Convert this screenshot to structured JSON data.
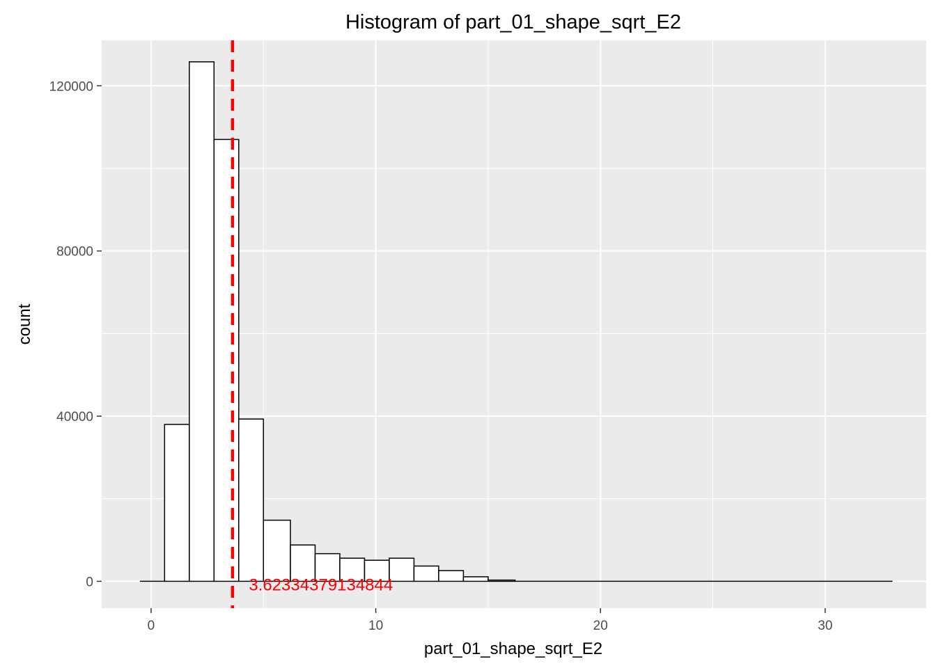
{
  "chart_data": {
    "type": "bar",
    "title": "Histogram of  part_01_shape_sqrt_E2",
    "xlabel": "part_01_shape_sqrt_E2",
    "ylabel": "count",
    "xlim": [
      -2.2,
      34.5
    ],
    "ylim": [
      -6500,
      131000
    ],
    "x_ticks": [
      0,
      10,
      20,
      30
    ],
    "y_ticks": [
      0,
      40000,
      80000,
      120000
    ],
    "x_tick_labels": [
      "0",
      "10",
      "20",
      "30"
    ],
    "y_tick_labels": [
      "0",
      "40000",
      "80000",
      "120000"
    ],
    "bin_width": 1.12,
    "bins": [
      {
        "x0": -0.5,
        "x1": 0.6,
        "count": 0
      },
      {
        "x0": 0.6,
        "x1": 1.7,
        "count": 38000
      },
      {
        "x0": 1.7,
        "x1": 2.8,
        "count": 125800
      },
      {
        "x0": 2.8,
        "x1": 3.9,
        "count": 107000
      },
      {
        "x0": 3.9,
        "x1": 5.0,
        "count": 39300
      },
      {
        "x0": 5.0,
        "x1": 6.2,
        "count": 14800
      },
      {
        "x0": 6.2,
        "x1": 7.3,
        "count": 8800
      },
      {
        "x0": 7.3,
        "x1": 8.4,
        "count": 6700
      },
      {
        "x0": 8.4,
        "x1": 9.5,
        "count": 5600
      },
      {
        "x0": 9.5,
        "x1": 10.6,
        "count": 5100
      },
      {
        "x0": 10.6,
        "x1": 11.7,
        "count": 5600
      },
      {
        "x0": 11.7,
        "x1": 12.8,
        "count": 3700
      },
      {
        "x0": 12.8,
        "x1": 13.9,
        "count": 2600
      },
      {
        "x0": 13.9,
        "x1": 15.0,
        "count": 1100
      },
      {
        "x0": 15.0,
        "x1": 16.2,
        "count": 300
      },
      {
        "x0": 16.2,
        "x1": 33.0,
        "count": 0
      }
    ],
    "reference_line": {
      "x": 3.62334379134844,
      "label": "3.62334379134844",
      "label_x": 4.35,
      "label_y": 0,
      "color": "#ff0000",
      "style": "dashed"
    },
    "panel_color": "#ebebeb",
    "grid_color": "#ffffff",
    "bar_fill": "#ffffff",
    "bar_stroke": "#000000",
    "grid": true,
    "legend": "none"
  }
}
